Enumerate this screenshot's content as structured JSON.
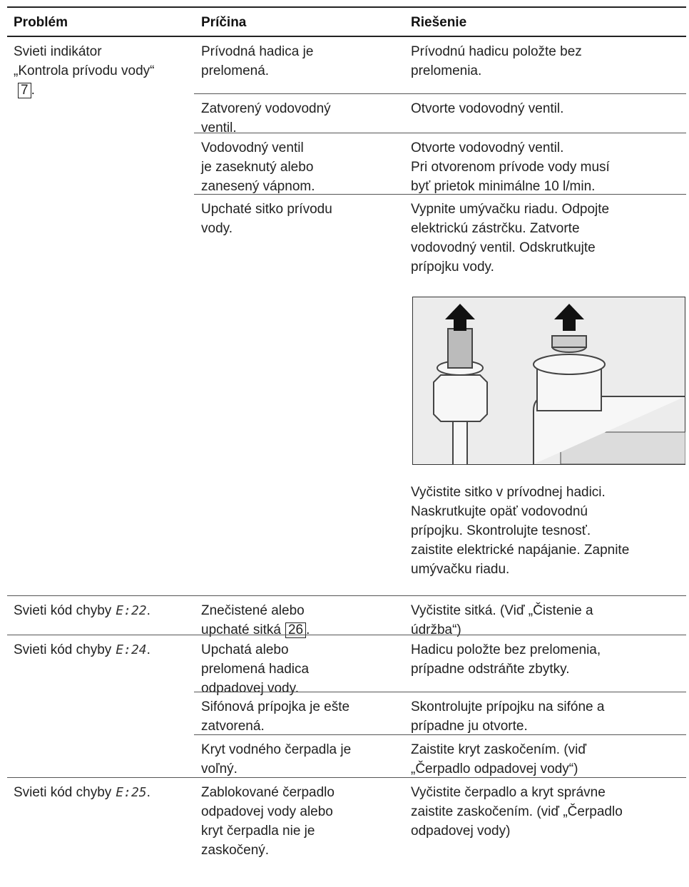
{
  "header": {
    "problem": "Problém",
    "cause": "Príčina",
    "solution": "Riešenie"
  },
  "rows": [
    {
      "problem": {
        "text": "Svieti indikátor „Kontrola prívodu vody“",
        "ref": "7",
        "end": "."
      },
      "causes": [
        {
          "cause": [
            "Prívodná hadica je",
            "prelomená."
          ],
          "solution": [
            "Prívodnú hadicu položte bez",
            "prelomenia."
          ]
        },
        {
          "cause": [
            "Zatvorený vodovodný",
            "ventil."
          ],
          "solution": [
            "Otvorte vodovodný ventil."
          ]
        },
        {
          "cause": [
            "Vodovodný ventil",
            "je zaseknutý alebo",
            "zanesený vápnom."
          ],
          "solution": [
            "Otvorte vodovodný ventil.",
            "Pri otvorenom prívode vody musí",
            "byť prietok minimálne 10 l/min."
          ]
        },
        {
          "cause": [
            "Upchaté sitko prívodu",
            "vody."
          ],
          "solution": [
            "Vypnite umývačku riadu. Odpojte",
            "elektrickú zástrčku. Zatvorte",
            "vodovodný ventil. Odskrutkujte",
            "prípojku vody."
          ],
          "solution_after": [
            "Vyčistite sitko v prívodnej hadici.",
            "Naskrutkujte opäť vodovodnú",
            "prípojku. Skontrolujte tesnosť.",
            "zaistite elektrické napájanie. Zapnite",
            "umývačku riadu."
          ]
        }
      ]
    },
    {
      "problem": {
        "text": "Svieti kód chyby",
        "code": "E:22",
        "end": "."
      },
      "causes": [
        {
          "cause": [
            "Znečistené alebo",
            "upchaté sitká"
          ],
          "cause_ref": "26",
          "cause_end": ".",
          "solution": [
            "Vyčistite sitká. (Viď „Čistenie a",
            "údržba“)"
          ]
        }
      ]
    },
    {
      "problem": {
        "text": "Svieti kód chyby",
        "code": "E:24",
        "end": "."
      },
      "causes": [
        {
          "cause": [
            "Upchatá alebo",
            "prelomená hadica",
            "odpadovej vody."
          ],
          "solution": [
            "Hadicu položte bez prelomenia,",
            "prípadne odstráňte zbytky."
          ]
        },
        {
          "cause": [
            "Sifónová prípojka je ešte",
            "zatvorená."
          ],
          "solution": [
            "Skontrolujte prípojku na sifóne a",
            "prípadne ju otvorte."
          ]
        },
        {
          "cause": [
            "Kryt vodného čerpadla je",
            "voľný."
          ],
          "solution": [
            "Zaistite kryt zaskočením. (viď",
            "„Čerpadlo odpadovej vody“)"
          ]
        }
      ]
    },
    {
      "problem": {
        "text": "Svieti kód chyby",
        "code": "E:25",
        "end": "."
      },
      "causes": [
        {
          "cause": [
            "Zablokované čerpadlo",
            "odpadovej vody alebo",
            "kryt čerpadla nie je",
            "zaskočený."
          ],
          "solution": [
            "Vyčistite čerpadlo a kryt správne",
            "zaistite zaskočením. (viď „Čerpadlo",
            "odpadovej vody)"
          ]
        }
      ]
    }
  ]
}
